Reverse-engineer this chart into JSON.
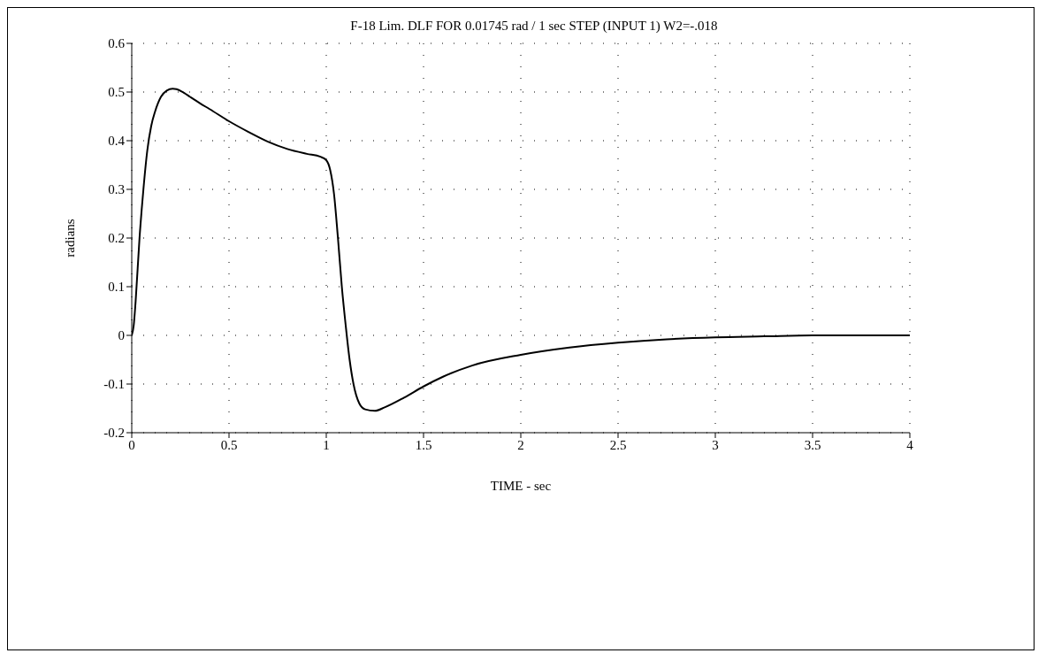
{
  "chart_data": {
    "type": "line",
    "title": "F-18 Lim. DLF FOR 0.01745 rad / 1 sec STEP (INPUT 1) W2=-.018",
    "xlabel": "TIME - sec",
    "ylabel": "radians",
    "x": [
      0,
      0.01,
      0.02,
      0.04,
      0.06,
      0.08,
      0.1,
      0.12,
      0.15,
      0.18,
      0.21,
      0.23,
      0.27,
      0.3,
      0.35,
      0.4,
      0.5,
      0.6,
      0.7,
      0.8,
      0.9,
      0.97,
      1.0,
      1.02,
      1.04,
      1.06,
      1.08,
      1.1,
      1.12,
      1.14,
      1.17,
      1.2,
      1.25,
      1.3,
      1.4,
      1.5,
      1.6,
      1.75,
      2.0,
      2.25,
      2.5,
      2.75,
      3.0,
      3.25,
      3.5,
      3.75,
      4.0
    ],
    "series": [
      {
        "color": "#000000",
        "values": [
          0,
          0.02,
          0.07,
          0.2,
          0.3,
          0.38,
          0.43,
          0.46,
          0.49,
          0.503,
          0.507,
          0.506,
          0.498,
          0.49,
          0.477,
          0.465,
          0.44,
          0.418,
          0.398,
          0.383,
          0.373,
          0.367,
          0.36,
          0.34,
          0.29,
          0.2,
          0.1,
          0.02,
          -0.05,
          -0.1,
          -0.14,
          -0.152,
          -0.155,
          -0.148,
          -0.128,
          -0.105,
          -0.085,
          -0.062,
          -0.04,
          -0.025,
          -0.015,
          -0.008,
          -0.004,
          -0.002,
          0,
          0,
          0
        ]
      }
    ],
    "xlim": [
      0,
      4
    ],
    "xticks": [
      0,
      0.5,
      1,
      1.5,
      2,
      2.5,
      3,
      3.5,
      4
    ],
    "ylim": [
      -0.2,
      0.6
    ],
    "yticks": [
      -0.2,
      -0.1,
      0,
      0.1,
      0.2,
      0.3,
      0.4,
      0.5,
      0.6
    ],
    "grid": true,
    "marker": "none",
    "line_style": "solid"
  }
}
